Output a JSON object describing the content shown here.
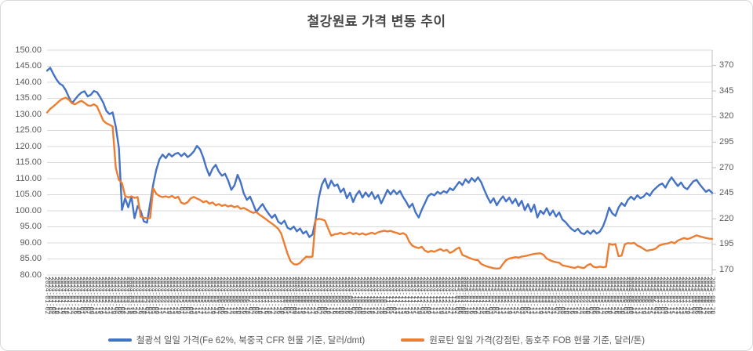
{
  "title": "철강원료 가격 변동 추이",
  "colors": {
    "iron_ore": "#4472C4",
    "coking_coal": "#ED7D31",
    "gridline": "#D9D9D9",
    "axis_line": "#BFBFBF",
    "axis_text": "#595959",
    "title_text": "#474747",
    "frame_border": "#D9D9D9",
    "background": "#FFFFFF"
  },
  "legend": [
    {
      "label": "철광석 일일 가격(Fe 62%, 북중국 CFR 현물 기준, 달러/dmt)",
      "color": "#4472C4"
    },
    {
      "label": "원료탄 일일 가격(강점탄, 동호주 FOB 현물 기준, 달러/톤)",
      "color": "#ED7D31"
    }
  ],
  "chart_data": {
    "type": "line",
    "title": "철강원료 가격 변동 추이",
    "grid": true,
    "legend_position": "bottom",
    "left_axis": {
      "min": 80,
      "max": 150,
      "step": 5,
      "labels": [
        "150.00",
        "145.00",
        "140.00",
        "135.00",
        "130.00",
        "125.00",
        "120.00",
        "115.00",
        "110.00",
        "105.00",
        "100.00",
        "95.00",
        "90.00",
        "85.00",
        "80.00"
      ]
    },
    "right_axis": {
      "tick_min": 170,
      "tick_max": 370,
      "step": 25,
      "scale_min": 165,
      "scale_max": 385,
      "labels": [
        "370",
        "345",
        "320",
        "295",
        "270",
        "245",
        "220",
        "195",
        "170"
      ]
    },
    "x_axis": {
      "label_format": "YYYY-MM-DD",
      "start_date": "2024-01-02",
      "business_day_step": 2,
      "count": 214,
      "labels_rotated_degrees": 90
    },
    "series": [
      {
        "name": "철광석 일일 가격(Fe 62%, 북중국 CFR 현물 기준, 달러/dmt)",
        "axis": "left",
        "color": "#4472C4",
        "values": [
          143.6,
          144.5,
          142.6,
          140.9,
          139.6,
          139.0,
          137.5,
          135.3,
          133.5,
          134.7,
          135.9,
          136.8,
          137.2,
          135.6,
          136.1,
          137.3,
          136.9,
          135.4,
          133.6,
          131.1,
          130.1,
          130.6,
          126.2,
          119.5,
          100.3,
          103.9,
          101.1,
          104.5,
          97.7,
          101.5,
          99.9,
          96.7,
          96.3,
          102.2,
          108.3,
          112.8,
          116.0,
          117.5,
          116.4,
          117.8,
          116.9,
          117.7,
          118.0,
          117.0,
          117.9,
          116.7,
          117.4,
          118.5,
          120.2,
          119.1,
          116.6,
          113.4,
          110.9,
          113.1,
          114.3,
          112.2,
          110.9,
          111.5,
          109.4,
          106.5,
          107.9,
          111.2,
          108.9,
          105.4,
          103.4,
          104.4,
          102.1,
          99.6,
          100.9,
          102.1,
          100.4,
          99.0,
          97.8,
          98.8,
          96.6,
          95.9,
          96.9,
          94.7,
          94.2,
          95.1,
          93.6,
          94.5,
          92.9,
          93.6,
          91.8,
          92.6,
          97.2,
          104.0,
          108.1,
          110.0,
          107.0,
          109.4,
          107.7,
          108.2,
          105.8,
          106.9,
          103.9,
          105.6,
          102.7,
          104.9,
          106.2,
          104.1,
          105.7,
          104.4,
          105.8,
          103.7,
          104.9,
          102.3,
          104.3,
          106.5,
          105.1,
          106.4,
          105.2,
          106.2,
          104.3,
          102.8,
          101.0,
          102.2,
          99.5,
          97.9,
          100.3,
          102.4,
          104.5,
          105.3,
          104.8,
          105.9,
          105.3,
          106.1,
          105.6,
          107.0,
          106.4,
          107.7,
          109.0,
          108.0,
          109.8,
          108.7,
          110.2,
          109.1,
          110.4,
          108.9,
          106.5,
          104.3,
          102.5,
          103.9,
          101.7,
          103.3,
          104.5,
          102.9,
          104.1,
          102.3,
          103.7,
          101.5,
          103.1,
          100.2,
          102.1,
          99.7,
          101.9,
          97.9,
          100.0,
          99.0,
          100.8,
          98.6,
          100.1,
          98.2,
          99.5,
          97.3,
          96.5,
          95.3,
          94.3,
          93.6,
          94.4,
          93.1,
          92.7,
          93.7,
          92.8,
          93.9,
          92.9,
          93.5,
          95.1,
          97.6,
          101.0,
          99.2,
          98.4,
          101.0,
          102.4,
          101.5,
          103.4,
          104.4,
          103.5,
          104.8,
          103.9,
          104.4,
          105.5,
          104.7,
          106.2,
          107.1,
          108.0,
          108.5,
          107.2,
          109.0,
          110.4,
          109.0,
          107.7,
          108.8,
          107.3,
          106.7,
          108.0,
          109.2,
          109.6,
          108.2,
          107.0,
          105.9,
          106.5,
          105.5
        ]
      },
      {
        "name": "원료탄 일일 가격(강점탄, 동호주 FOB 현물 기준, 달러/톤)",
        "axis": "right",
        "color": "#ED7D31",
        "values": [
          324.0,
          327.5,
          330.0,
          332.5,
          335.5,
          337.5,
          338.5,
          336.5,
          333.0,
          332.0,
          334.0,
          335.5,
          333.5,
          331.0,
          330.5,
          332.0,
          330.0,
          323.0,
          316.0,
          313.5,
          312.0,
          310.3,
          270.0,
          258.0,
          255.0,
          242.3,
          241.0,
          242.0,
          240.5,
          241.2,
          222.0,
          221.0,
          220.5,
          220.8,
          249.8,
          244.5,
          242.3,
          241.2,
          242.0,
          241.0,
          242.4,
          240.2,
          241.6,
          235.6,
          234.6,
          236.2,
          240.0,
          241.4,
          239.8,
          238.4,
          236.2,
          237.4,
          234.8,
          236.0,
          233.2,
          234.4,
          232.6,
          233.6,
          232.0,
          233.0,
          231.4,
          232.4,
          229.8,
          230.6,
          229.0,
          227.2,
          225.8,
          226.6,
          224.0,
          222.0,
          219.8,
          217.4,
          215.4,
          213.0,
          210.4,
          205.4,
          195.6,
          185.8,
          178.6,
          175.6,
          175.2,
          176.8,
          180.2,
          183.0,
          182.6,
          183.0,
          219.0,
          220.0,
          219.4,
          218.2,
          210.5,
          203.5,
          204.8,
          205.2,
          206.4,
          204.8,
          205.6,
          206.6,
          205.0,
          206.0,
          204.6,
          205.8,
          204.4,
          205.4,
          206.4,
          205.2,
          206.8,
          207.6,
          208.4,
          207.6,
          208.2,
          207.0,
          206.2,
          205.0,
          206.0,
          204.2,
          197.5,
          193.6,
          192.2,
          191.4,
          192.6,
          189.0,
          187.4,
          188.6,
          187.8,
          189.2,
          190.4,
          188.5,
          189.6,
          186.6,
          188.0,
          190.4,
          191.9,
          184.6,
          183.4,
          182.0,
          180.8,
          179.9,
          179.6,
          175.8,
          174.4,
          173.2,
          172.4,
          171.6,
          171.3,
          171.6,
          175.8,
          179.6,
          181.1,
          181.8,
          182.5,
          182.0,
          183.0,
          183.5,
          184.2,
          185.0,
          185.6,
          186.0,
          186.2,
          184.8,
          181.0,
          179.5,
          178.3,
          177.5,
          177.0,
          174.5,
          173.8,
          173.2,
          172.5,
          171.9,
          173.2,
          172.2,
          171.9,
          174.5,
          175.8,
          173.0,
          172.4,
          173.2,
          172.6,
          173.0,
          195.5,
          194.6,
          195.2,
          183.4,
          184.0,
          195.0,
          196.3,
          195.9,
          196.5,
          193.8,
          192.6,
          190.6,
          188.7,
          189.3,
          189.8,
          191.1,
          193.8,
          194.9,
          195.5,
          196.1,
          197.2,
          196.1,
          198.7,
          200.0,
          201.2,
          200.2,
          201.0,
          202.5,
          203.8,
          202.8,
          202.0,
          201.2,
          200.6,
          200.3
        ]
      }
    ]
  }
}
